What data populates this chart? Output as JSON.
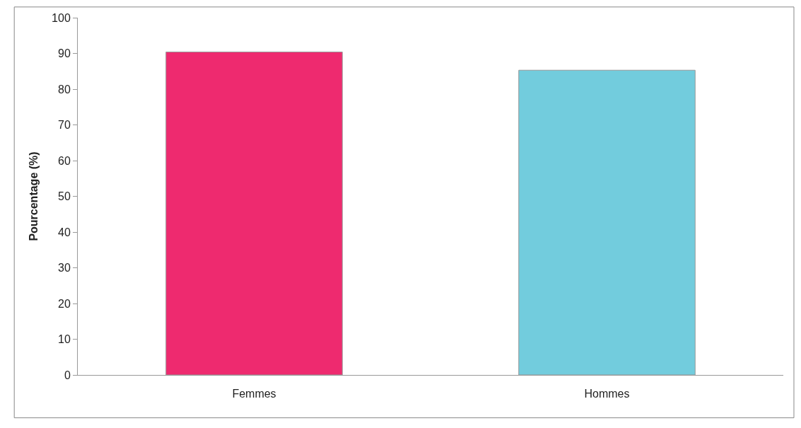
{
  "chart_data": {
    "type": "bar",
    "ylabel": "Pourcentage (%)",
    "categories": [
      "Femmes",
      "Hommes"
    ],
    "values": [
      90.4,
      85.3
    ],
    "colors": [
      "#ee2a6f",
      "#72ccdd"
    ],
    "ylim": [
      0,
      100
    ],
    "yticks": [
      0,
      10,
      20,
      30,
      40,
      50,
      60,
      70,
      80,
      90,
      100
    ],
    "grid": false
  }
}
